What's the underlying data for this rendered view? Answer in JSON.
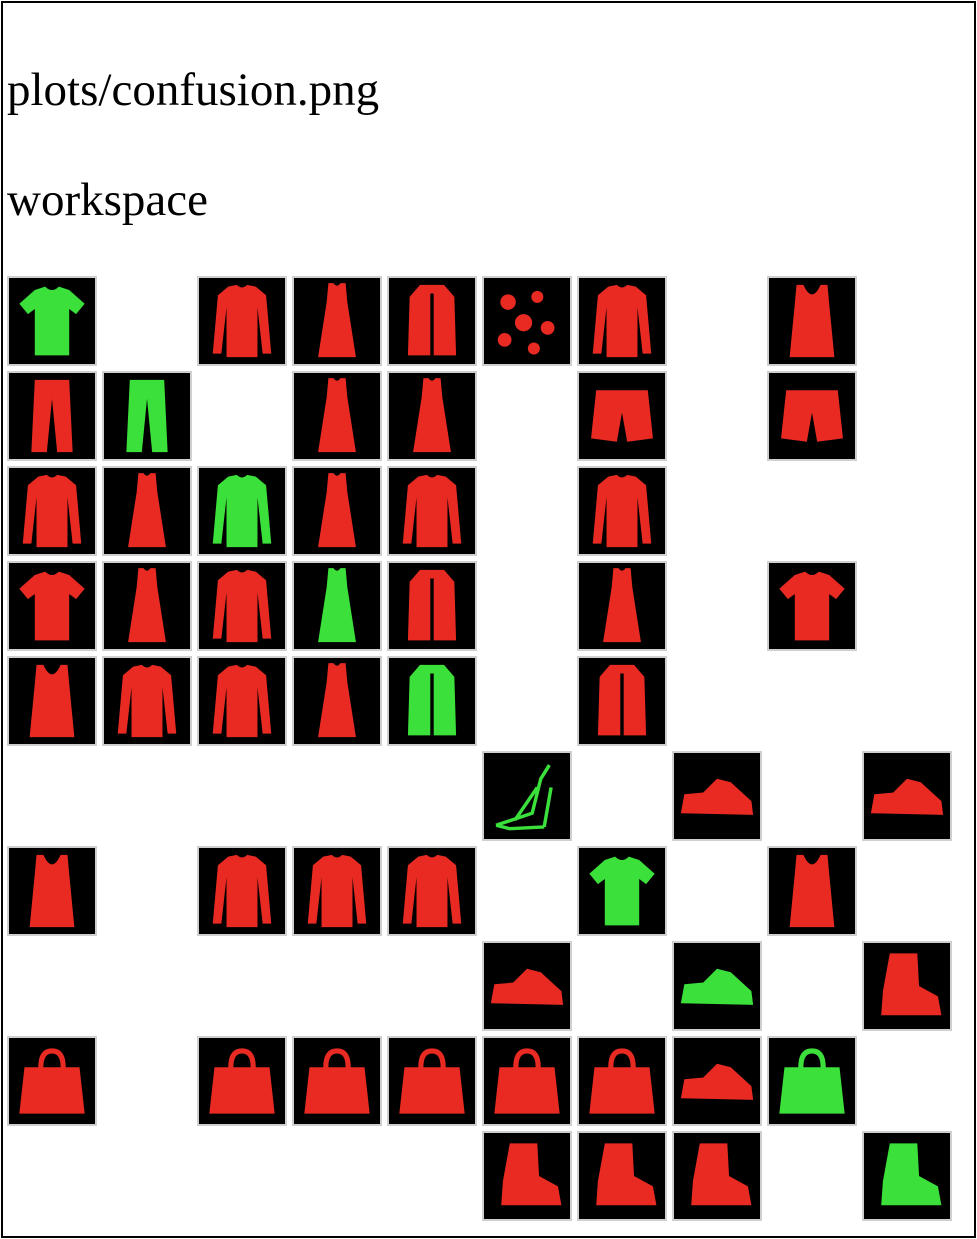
{
  "headings": {
    "file": "plots/confusion.png",
    "folder": "workspace"
  },
  "colors": {
    "page_background": "#ffffff",
    "tile_background": "#000000",
    "correct": "#3be03b",
    "incorrect": "#e82a22"
  },
  "confusion_grid": {
    "rows": 10,
    "cols": 10,
    "cells": [
      [
        "tshirt-icon",
        "",
        "longsleeve-icon",
        "dress-icon",
        "coat-icon",
        "scatter-icon",
        "longsleeve-icon",
        "",
        "tank-icon",
        ""
      ],
      [
        "pants-icon",
        "pants-icon",
        "",
        "dress-icon",
        "dress-icon",
        "",
        "shorts-icon",
        "",
        "shorts-icon",
        ""
      ],
      [
        "longsleeve-icon",
        "dress-icon",
        "longsleeve-icon",
        "dress-icon",
        "longsleeve-icon",
        "",
        "longsleeve-icon",
        "",
        "",
        ""
      ],
      [
        "tshirt-icon",
        "dress-icon",
        "longsleeve-icon",
        "dress-icon",
        "coat-icon",
        "",
        "dress-icon",
        "",
        "tshirt-icon",
        ""
      ],
      [
        "tank-icon",
        "longsleeve-icon",
        "longsleeve-icon",
        "dress-icon",
        "coat-icon",
        "",
        "coat-icon",
        "",
        "",
        ""
      ],
      [
        "",
        "",
        "",
        "",
        "",
        "sandal-icon",
        "",
        "sneaker-icon",
        "",
        "sneaker-icon"
      ],
      [
        "tank-icon",
        "",
        "longsleeve-icon",
        "longsleeve-icon",
        "longsleeve-icon",
        "",
        "tshirt-icon",
        "",
        "tank-icon",
        ""
      ],
      [
        "",
        "",
        "",
        "",
        "",
        "sneaker-icon",
        "",
        "sneaker-icon",
        "",
        "boot-icon"
      ],
      [
        "bag-icon",
        "",
        "bag-icon",
        "bag-icon",
        "bag-icon",
        "bag-icon",
        "bag-icon",
        "sneaker-icon",
        "bag-icon",
        ""
      ],
      [
        "",
        "",
        "",
        "",
        "",
        "boot-icon",
        "boot-icon",
        "boot-icon",
        "",
        "boot-icon"
      ]
    ],
    "correct": [
      [
        true,
        false,
        false,
        false,
        false,
        false,
        false,
        false,
        false,
        false
      ],
      [
        false,
        true,
        false,
        false,
        false,
        false,
        false,
        false,
        false,
        false
      ],
      [
        false,
        false,
        true,
        false,
        false,
        false,
        false,
        false,
        false,
        false
      ],
      [
        false,
        false,
        false,
        true,
        false,
        false,
        false,
        false,
        false,
        false
      ],
      [
        false,
        false,
        false,
        false,
        true,
        false,
        false,
        false,
        false,
        false
      ],
      [
        false,
        false,
        false,
        false,
        false,
        true,
        false,
        false,
        false,
        false
      ],
      [
        false,
        false,
        false,
        false,
        false,
        false,
        true,
        false,
        false,
        false
      ],
      [
        false,
        false,
        false,
        false,
        false,
        false,
        false,
        true,
        false,
        false
      ],
      [
        false,
        false,
        false,
        false,
        false,
        false,
        false,
        false,
        true,
        false
      ],
      [
        false,
        false,
        false,
        false,
        false,
        false,
        false,
        false,
        false,
        true
      ]
    ]
  }
}
